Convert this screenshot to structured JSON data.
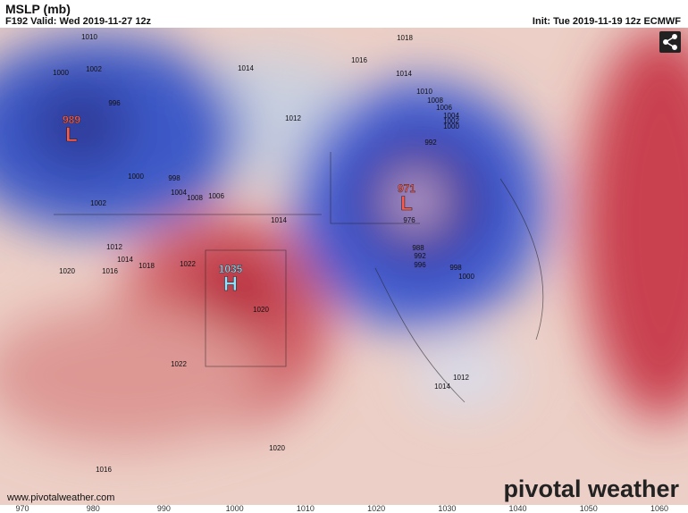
{
  "header": {
    "title": "MSLP (mb)",
    "valid": "F192 Valid: Wed 2019-11-27 12z",
    "init": "Init: Tue 2019-11-19 12z ECMWF"
  },
  "centers": [
    {
      "symbol": "L",
      "value": "989"
    },
    {
      "symbol": "L",
      "value": "971"
    },
    {
      "symbol": "H",
      "value": "1035"
    }
  ],
  "isobar_labels": [
    "1010",
    "1002",
    "1000",
    "996",
    "1000",
    "998",
    "1004",
    "1008",
    "1006",
    "1002",
    "1012",
    "1014",
    "1016",
    "1018",
    "1020",
    "1022",
    "1014",
    "1016",
    "1018",
    "1014",
    "1012",
    "1014",
    "1010",
    "1008",
    "1006",
    "1004",
    "1002",
    "1000",
    "992",
    "976",
    "988",
    "992",
    "996",
    "998",
    "1000",
    "1020",
    "1022",
    "1012",
    "1014",
    "1020",
    "1016"
  ],
  "colorbar": {
    "ticks": [
      970,
      980,
      990,
      1000,
      1010,
      1020,
      1030,
      1040,
      1050,
      1060
    ]
  },
  "footer": {
    "website": "www.pivotalweather.com",
    "brand": "pivotal weather"
  }
}
